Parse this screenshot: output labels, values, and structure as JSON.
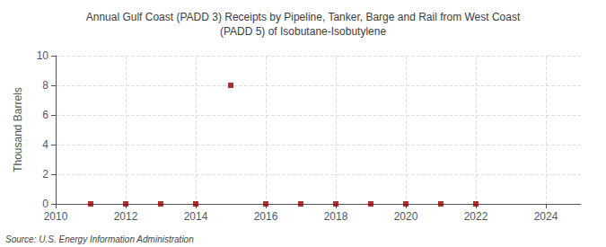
{
  "chart_data": {
    "type": "scatter",
    "title": "Annual Gulf Coast (PADD 3) Receipts by Pipeline, Tanker, Barge and Rail from West Coast\n(PADD 5) of Isobutane-Isobutylene",
    "ylabel": "Thousand Barrels",
    "source": "Source: U.S. Energy Information Administration",
    "x": [
      2011,
      2012,
      2013,
      2014,
      2015,
      2016,
      2017,
      2018,
      2019,
      2020,
      2021,
      2022
    ],
    "values": [
      0,
      0,
      0,
      0,
      8,
      0,
      0,
      0,
      0,
      0,
      0,
      0
    ],
    "color": "#990000",
    "marker": "square",
    "xlim": [
      2010,
      2025
    ],
    "xticks": [
      2010,
      2012,
      2014,
      2016,
      2018,
      2020,
      2022,
      2024
    ],
    "ylim": [
      0,
      10
    ],
    "yticks": [
      0,
      2,
      4,
      6,
      8,
      10
    ],
    "grid": true
  }
}
